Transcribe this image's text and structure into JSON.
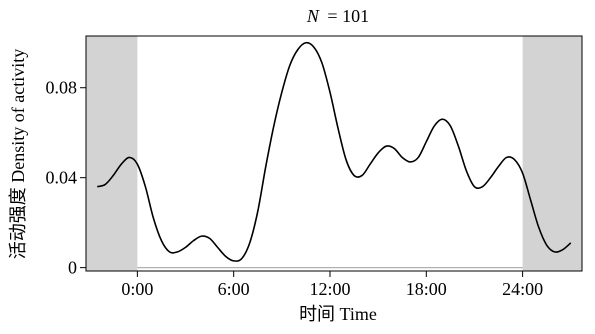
{
  "chart_data": {
    "type": "line",
    "title_prefix": "N",
    "title_value": "= 101",
    "xlabel": "时间 Time",
    "ylabel": "活动强度 Density of activity",
    "x_unit": "hour of day",
    "xlim": [
      -3.2,
      27.7
    ],
    "ylim": [
      -0.0015,
      0.103
    ],
    "x_ticks": [
      0,
      6,
      12,
      18,
      24
    ],
    "x_tick_labels": [
      "0:00",
      "6:00",
      "12:00",
      "18:00",
      "24:00"
    ],
    "y_ticks": [
      0,
      0.04,
      0.08
    ],
    "y_tick_labels": [
      "0",
      "0.04",
      "0.08"
    ],
    "shaded_regions": [
      [
        -3.2,
        0
      ],
      [
        24,
        27.7
      ]
    ],
    "baseline": 0,
    "grid": false,
    "series": [
      {
        "x": [
          -2.5,
          -2,
          -1.5,
          -1,
          -0.5,
          0,
          0.5,
          1,
          1.5,
          2,
          2.5,
          3,
          3.5,
          4,
          4.5,
          5,
          5.5,
          6,
          6.5,
          7,
          7.5,
          8,
          8.5,
          9,
          9.5,
          10,
          10.5,
          11,
          11.5,
          12,
          12.5,
          13,
          13.5,
          14,
          14.5,
          15,
          15.5,
          16,
          16.5,
          17,
          17.5,
          18,
          18.5,
          19,
          19.5,
          20,
          20.5,
          21,
          21.5,
          22,
          22.5,
          23,
          23.5,
          24,
          24.5,
          25,
          25.5,
          26,
          26.5,
          27
        ],
        "y": [
          0.036,
          0.037,
          0.041,
          0.046,
          0.049,
          0.046,
          0.036,
          0.022,
          0.012,
          0.007,
          0.007,
          0.009,
          0.012,
          0.014,
          0.013,
          0.009,
          0.005,
          0.003,
          0.004,
          0.011,
          0.025,
          0.045,
          0.063,
          0.078,
          0.09,
          0.097,
          0.1,
          0.098,
          0.091,
          0.078,
          0.062,
          0.048,
          0.041,
          0.041,
          0.046,
          0.051,
          0.054,
          0.053,
          0.049,
          0.047,
          0.049,
          0.056,
          0.063,
          0.066,
          0.063,
          0.054,
          0.043,
          0.036,
          0.036,
          0.04,
          0.045,
          0.049,
          0.048,
          0.042,
          0.03,
          0.018,
          0.01,
          0.007,
          0.008,
          0.011
        ]
      }
    ]
  }
}
